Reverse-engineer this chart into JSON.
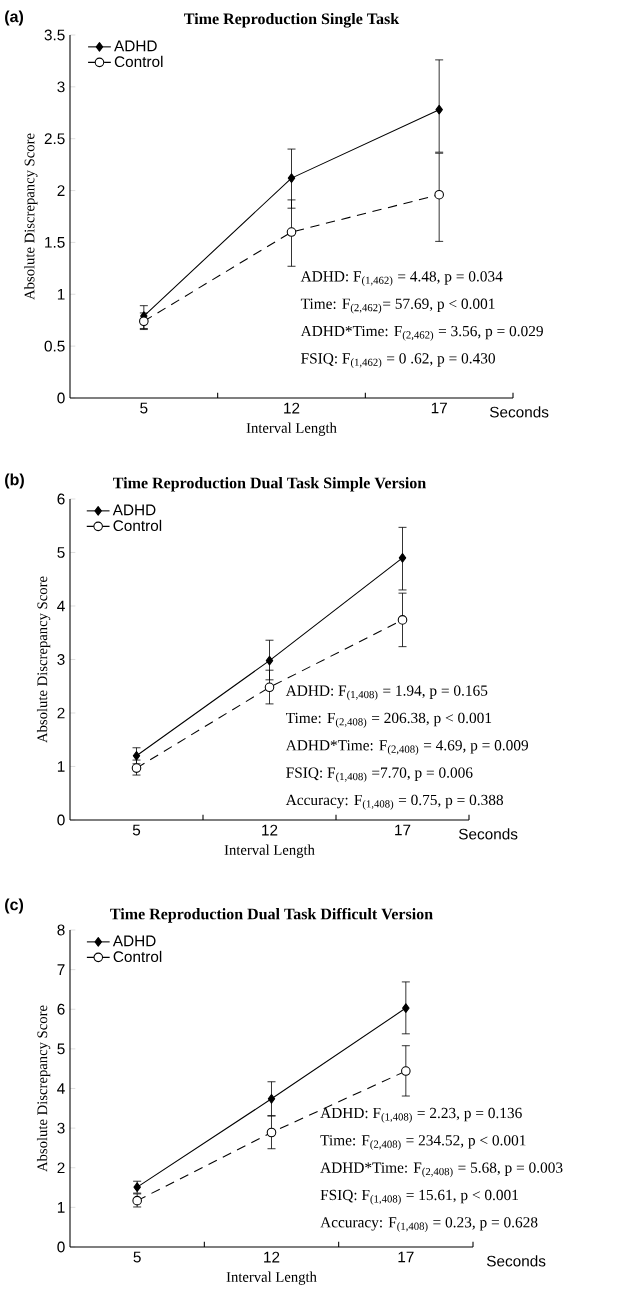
{
  "chart_data": [
    {
      "type": "line",
      "title": "Time Reproduction Single Task",
      "xlabel": "Interval Length",
      "ylabel": "Absolute Discrepancy Score",
      "categories": [
        "5",
        "12",
        "17"
      ],
      "ylim": [
        0,
        3.5
      ],
      "yticks": [
        0,
        0.5,
        1,
        1.5,
        2,
        2.5,
        3,
        3.5
      ],
      "legend": "top left",
      "series": [
        {
          "name": "ADHD",
          "color": "#000000",
          "marker": "diamond",
          "line_style": "solid",
          "values": [
            0.79,
            2.12,
            2.78
          ],
          "errors": [
            [
              0.67,
              0.89
            ],
            [
              1.83,
              2.4
            ],
            [
              2.37,
              3.26
            ]
          ]
        },
        {
          "name": "Control",
          "color": "#000000",
          "marker": "circle",
          "line_style": "dashed",
          "values": [
            0.74,
            1.6,
            1.96
          ],
          "errors": [
            [
              0.66,
              0.82
            ],
            [
              1.27,
              1.91
            ],
            [
              1.51,
              2.36
            ]
          ]
        }
      ],
      "annotations": [
        "(a)",
        "Seconds",
        "ADHD: F$_{(1,462)}$ = 4.48, p = 0.034",
        "Time: F$_{(2,462)}$= 57.69, p < 0.001",
        "ADHD*Time: F$_{(2,462)}$ = 3.56, p = 0.029",
        "FSIQ: F$_{(1,462)}$ = 0 .62, p = 0.430"
      ]
    },
    {
      "type": "line",
      "title": "Time Reproduction Dual Task Simple Version",
      "xlabel": "Interval Length",
      "ylabel": "Absolute Discrepancy Score",
      "categories": [
        "5",
        "12",
        "17"
      ],
      "ylim": [
        0,
        6
      ],
      "yticks": [
        0,
        1,
        2,
        3,
        4,
        5,
        6
      ],
      "legend": "top left",
      "series": [
        {
          "name": "ADHD",
          "color": "#000000",
          "marker": "diamond",
          "line_style": "solid",
          "values": [
            1.2,
            2.98,
            4.9
          ],
          "errors": [
            [
              1.05,
              1.35
            ],
            [
              2.62,
              3.36
            ],
            [
              4.3,
              5.47
            ]
          ]
        },
        {
          "name": "Control",
          "color": "#000000",
          "marker": "circle",
          "line_style": "dashed",
          "values": [
            0.97,
            2.48,
            3.74
          ],
          "errors": [
            [
              0.84,
              1.12
            ],
            [
              2.17,
              2.8
            ],
            [
              3.24,
              4.24
            ]
          ]
        }
      ],
      "annotations": [
        "(b)",
        "Seconds",
        "ADHD: F$_{(1,408)}$ = 1.94, p = 0.165",
        "Time: F$_{(2,408)}$ = 206.38, p < 0.001",
        "ADHD*Time: F$_{(2,408)}$ = 4.69, p = 0.009",
        "FSIQ: F$_{(1,408)}$ =7.70, p = 0.006",
        "Accuracy: F$_{(1,408)}$ = 0.75, p = 0.388"
      ]
    },
    {
      "type": "line",
      "title": "Time Reproduction Dual Task Difficult Version",
      "xlabel": "Interval Length",
      "ylabel": "Absolute Discrepancy Score",
      "categories": [
        "5",
        "12",
        "17"
      ],
      "ylim": [
        0,
        8
      ],
      "yticks": [
        0,
        1,
        2,
        3,
        4,
        5,
        6,
        7,
        8
      ],
      "legend": "top left",
      "series": [
        {
          "name": "ADHD",
          "color": "#000000",
          "marker": "diamond",
          "line_style": "solid",
          "values": [
            1.51,
            3.74,
            6.03
          ],
          "errors": [
            [
              1.36,
              1.66
            ],
            [
              3.31,
              4.17
            ],
            [
              5.38,
              6.69
            ]
          ]
        },
        {
          "name": "Control",
          "color": "#000000",
          "marker": "circle",
          "line_style": "dashed",
          "values": [
            1.17,
            2.89,
            4.44
          ],
          "errors": [
            [
              1.01,
              1.34
            ],
            [
              2.48,
              3.31
            ],
            [
              3.81,
              5.08
            ]
          ]
        }
      ],
      "annotations": [
        "(c)",
        "Seconds",
        "ADHD: F$_{(1,408)}$ = 2.23, p = 0.136",
        "Time: F$_{(2,408)}$ = 234.52, p < 0.001",
        "ADHD*Time: F$_{(2,408)}$ = 5.68, p = 0.003",
        "FSIQ: F$_{(1,408)}$ = 15.61, p < 0.001",
        "Accuracy: F$_{(1,408)}$ = 0.23, p = 0.628"
      ]
    }
  ]
}
